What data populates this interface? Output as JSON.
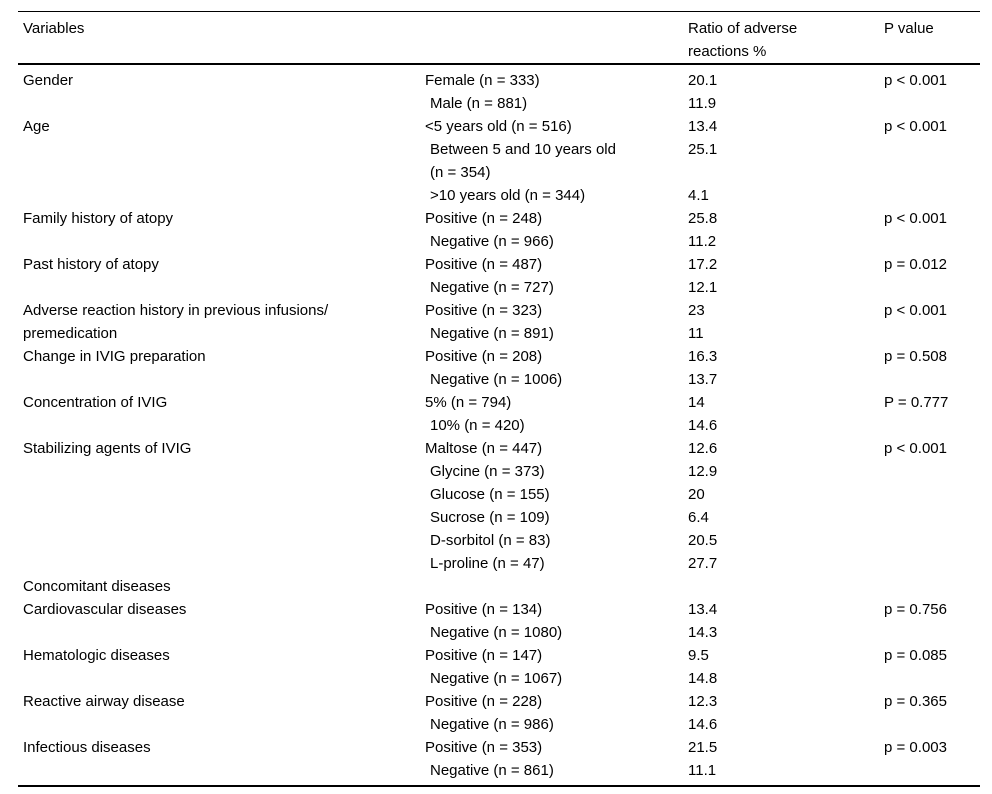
{
  "page": {
    "background_color": "#ffffff",
    "text_color": "#000000",
    "rule_color": "#000000"
  },
  "table": {
    "headers": {
      "variables": "Variables",
      "category": "",
      "ratio": "Ratio of adverse\nreactions %",
      "p_value": "P value"
    },
    "groups": [
      {
        "variable": "Gender",
        "p": "p < 0.001",
        "entries": [
          {
            "category": "Female (n = 333)",
            "ratio": "20.1"
          },
          {
            "category": "Male (n = 881)",
            "ratio": "11.9"
          }
        ]
      },
      {
        "variable": "Age",
        "p": "p < 0.001",
        "entries": [
          {
            "category": "<5 years old (n = 516)",
            "ratio": "13.4"
          },
          {
            "category": "Between 5 and 10 years old\n(n = 354)",
            "ratio": "25.1"
          },
          {
            "category": ">10 years old (n = 344)",
            "ratio": "4.1"
          }
        ]
      },
      {
        "variable": "Family history of atopy",
        "p": "p < 0.001",
        "entries": [
          {
            "category": "Positive (n = 248)",
            "ratio": "25.8"
          },
          {
            "category": "Negative (n = 966)",
            "ratio": "11.2"
          }
        ]
      },
      {
        "variable": "Past history of atopy",
        "p": "p = 0.012",
        "entries": [
          {
            "category": "Positive (n = 487)",
            "ratio": "17.2"
          },
          {
            "category": "Negative (n = 727)",
            "ratio": "12.1"
          }
        ]
      },
      {
        "variable": "Adverse reaction history in previous infusions/\npremedication",
        "p": "p < 0.001",
        "entries": [
          {
            "category": "Positive (n = 323)",
            "ratio": "23"
          },
          {
            "category": "Negative (n = 891)",
            "ratio": "11"
          }
        ]
      },
      {
        "variable": "Change in IVIG preparation",
        "p": "p = 0.508",
        "entries": [
          {
            "category": "Positive (n = 208)",
            "ratio": "16.3"
          },
          {
            "category": "Negative (n = 1006)",
            "ratio": "13.7"
          }
        ]
      },
      {
        "variable": "Concentration of IVIG",
        "p": "P = 0.777",
        "entries": [
          {
            "category": "5% (n = 794)",
            "ratio": "14"
          },
          {
            "category": "10% (n = 420)",
            "ratio": "14.6"
          }
        ]
      },
      {
        "variable": "Stabilizing agents of IVIG",
        "p": "p < 0.001",
        "entries": [
          {
            "category": "Maltose (n = 447)",
            "ratio": "12.6"
          },
          {
            "category": "Glycine (n = 373)",
            "ratio": "12.9"
          },
          {
            "category": "Glucose (n = 155)",
            "ratio": "20"
          },
          {
            "category": "Sucrose (n = 109)",
            "ratio": "6.4"
          },
          {
            "category": "D-sorbitol (n = 83)",
            "ratio": "20.5"
          },
          {
            "category": "L-proline (n = 47)",
            "ratio": "27.7"
          }
        ]
      },
      {
        "variable": "Concomitant diseases",
        "p": "",
        "entries": []
      },
      {
        "variable": "Cardiovascular diseases",
        "p": "p = 0.756",
        "entries": [
          {
            "category": "Positive (n = 134)",
            "ratio": "13.4"
          },
          {
            "category": "Negative (n = 1080)",
            "ratio": "14.3"
          }
        ]
      },
      {
        "variable": "Hematologic diseases",
        "p": "p = 0.085",
        "entries": [
          {
            "category": "Positive (n = 147)",
            "ratio": "9.5"
          },
          {
            "category": "Negative (n = 1067)",
            "ratio": "14.8"
          }
        ]
      },
      {
        "variable": "Reactive airway disease",
        "p": "p = 0.365",
        "entries": [
          {
            "category": "Positive (n = 228)",
            "ratio": "12.3"
          },
          {
            "category": "Negative (n = 986)",
            "ratio": "14.6"
          }
        ]
      },
      {
        "variable": "Infectious diseases",
        "p": "p = 0.003",
        "entries": [
          {
            "category": "Positive (n = 353)",
            "ratio": "21.5"
          },
          {
            "category": "Negative (n = 861)",
            "ratio": "11.1"
          }
        ]
      }
    ]
  }
}
